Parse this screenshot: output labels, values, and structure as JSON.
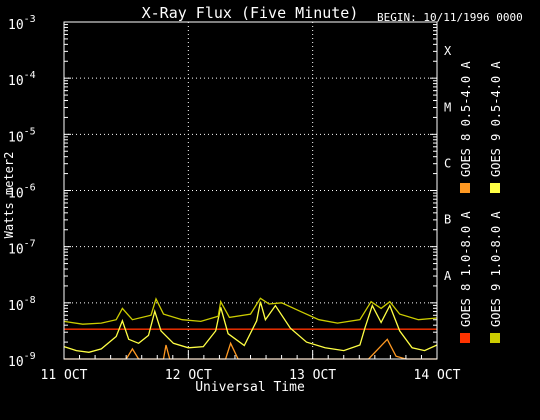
{
  "chart_data": {
    "type": "line",
    "title": "X-Ray Flux (Five Minute)",
    "begin_label": "BEGIN: 10/11/1996 0000",
    "xlabel": "Universal Time",
    "ylabel": "Watts meter2",
    "y_scale": "log",
    "ylim_exponent": [
      -9,
      -3
    ],
    "y_ticks": [
      {
        "base": "10",
        "exp": "-9"
      },
      {
        "base": "10",
        "exp": "-8"
      },
      {
        "base": "10",
        "exp": "-7"
      },
      {
        "base": "10",
        "exp": "-6"
      },
      {
        "base": "10",
        "exp": "-5"
      },
      {
        "base": "10",
        "exp": "-4"
      },
      {
        "base": "10",
        "exp": "-3"
      }
    ],
    "x_ticks": [
      "11 OCT",
      "12 OCT",
      "13 OCT",
      "14 OCT"
    ],
    "flare_classes": [
      {
        "label": "A",
        "exp": -8
      },
      {
        "label": "B",
        "exp": -7
      },
      {
        "label": "C",
        "exp": -6
      },
      {
        "label": "M",
        "exp": -5
      },
      {
        "label": "X",
        "exp": -4
      }
    ],
    "grid": "dotted",
    "legend_placement": "right",
    "series": [
      {
        "name": "GOES 8 1.0-8.0 A",
        "color": "#ff3300",
        "points": [
          [
            0,
            -8.47
          ],
          [
            0.25,
            -8.47
          ],
          [
            0.5,
            -8.47
          ],
          [
            0.75,
            -8.47
          ],
          [
            1,
            -8.47
          ],
          [
            1.25,
            -8.47
          ],
          [
            1.5,
            -8.47
          ],
          [
            1.75,
            -8.47
          ],
          [
            2,
            -8.47
          ],
          [
            2.25,
            -8.47
          ],
          [
            2.5,
            -8.47
          ],
          [
            2.75,
            -8.47
          ],
          [
            3,
            -8.47
          ]
        ]
      },
      {
        "name": "GOES 8 0.5-4.0 A",
        "color": "#ff9922",
        "points": [
          [
            0,
            -9.0
          ],
          [
            0.5,
            -9.0
          ],
          [
            0.55,
            -8.82
          ],
          [
            0.6,
            -9.0
          ],
          [
            0.8,
            -9.0
          ],
          [
            0.82,
            -8.75
          ],
          [
            0.85,
            -9.0
          ],
          [
            0.98,
            -9.0
          ],
          [
            1.3,
            -9.0
          ],
          [
            1.34,
            -8.72
          ],
          [
            1.4,
            -9.0
          ],
          [
            2.45,
            -9.0
          ],
          [
            2.6,
            -8.65
          ],
          [
            2.67,
            -8.95
          ],
          [
            2.75,
            -9.0
          ],
          [
            3,
            -9.0
          ]
        ]
      },
      {
        "name": "GOES 9 0.5-4.0 A",
        "color": "#ffff44",
        "points": [
          [
            0,
            -8.78
          ],
          [
            0.1,
            -8.85
          ],
          [
            0.2,
            -8.88
          ],
          [
            0.3,
            -8.82
          ],
          [
            0.42,
            -8.6
          ],
          [
            0.47,
            -8.32
          ],
          [
            0.52,
            -8.65
          ],
          [
            0.6,
            -8.72
          ],
          [
            0.68,
            -8.58
          ],
          [
            0.73,
            -8.15
          ],
          [
            0.78,
            -8.5
          ],
          [
            0.88,
            -8.72
          ],
          [
            1.0,
            -8.8
          ],
          [
            1.12,
            -8.78
          ],
          [
            1.22,
            -8.5
          ],
          [
            1.26,
            -8.08
          ],
          [
            1.32,
            -8.55
          ],
          [
            1.45,
            -8.76
          ],
          [
            1.55,
            -8.32
          ],
          [
            1.58,
            -7.98
          ],
          [
            1.62,
            -8.3
          ],
          [
            1.7,
            -8.05
          ],
          [
            1.82,
            -8.45
          ],
          [
            1.95,
            -8.7
          ],
          [
            2.1,
            -8.8
          ],
          [
            2.25,
            -8.85
          ],
          [
            2.38,
            -8.75
          ],
          [
            2.42,
            -8.45
          ],
          [
            2.48,
            -8.05
          ],
          [
            2.55,
            -8.35
          ],
          [
            2.62,
            -8.05
          ],
          [
            2.7,
            -8.5
          ],
          [
            2.8,
            -8.8
          ],
          [
            2.9,
            -8.85
          ],
          [
            3,
            -8.75
          ]
        ]
      },
      {
        "name": "GOES 9 1.0-8.0 A",
        "color": "#cccc00",
        "points": [
          [
            0,
            -8.33
          ],
          [
            0.15,
            -8.38
          ],
          [
            0.3,
            -8.36
          ],
          [
            0.42,
            -8.3
          ],
          [
            0.47,
            -8.1
          ],
          [
            0.55,
            -8.3
          ],
          [
            0.7,
            -8.22
          ],
          [
            0.74,
            -7.93
          ],
          [
            0.8,
            -8.2
          ],
          [
            0.95,
            -8.3
          ],
          [
            1.1,
            -8.33
          ],
          [
            1.24,
            -8.24
          ],
          [
            1.26,
            -7.98
          ],
          [
            1.33,
            -8.26
          ],
          [
            1.5,
            -8.2
          ],
          [
            1.58,
            -7.92
          ],
          [
            1.65,
            -8.02
          ],
          [
            1.75,
            -8.0
          ],
          [
            1.9,
            -8.15
          ],
          [
            2.05,
            -8.3
          ],
          [
            2.2,
            -8.36
          ],
          [
            2.38,
            -8.3
          ],
          [
            2.47,
            -7.98
          ],
          [
            2.55,
            -8.1
          ],
          [
            2.62,
            -7.98
          ],
          [
            2.7,
            -8.2
          ],
          [
            2.85,
            -8.3
          ],
          [
            3,
            -8.27
          ]
        ]
      }
    ]
  }
}
